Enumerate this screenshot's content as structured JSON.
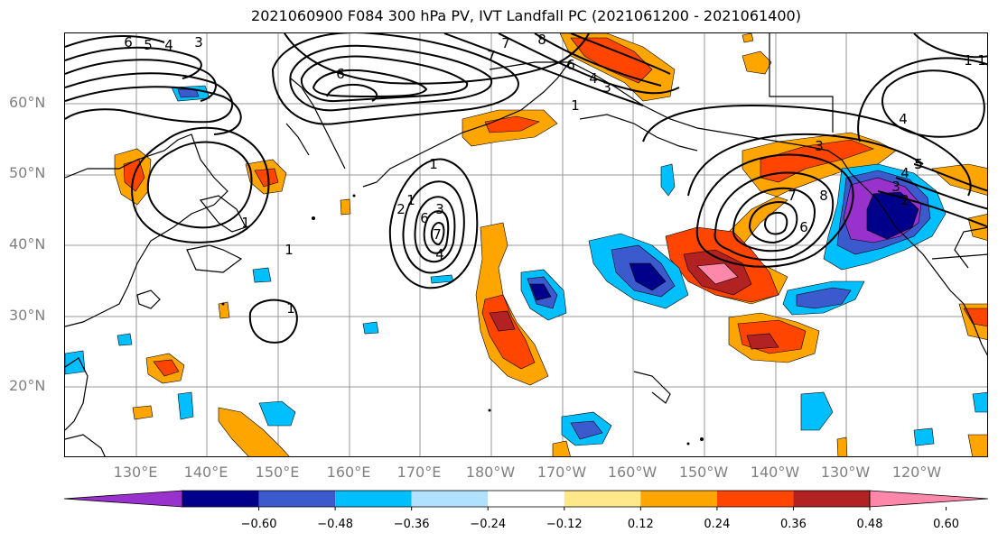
{
  "title": "2021060900 F084 300 hPa PV, IVT Landfall PC (2021061200 - 2021061400)",
  "map": {
    "lat_labels": [
      "60°N",
      "50°N",
      "40°N",
      "30°N",
      "20°N"
    ],
    "lon_labels": [
      "130°E",
      "140°E",
      "150°E",
      "160°E",
      "170°E",
      "180°W",
      "170°W",
      "160°W",
      "150°W",
      "140°W",
      "130°W",
      "120°W"
    ],
    "contour_labels": [
      "6",
      "5",
      "4",
      "3",
      "7",
      "8",
      "6",
      "7",
      "6",
      "4",
      "3",
      "1",
      "1",
      "1",
      "1",
      "1",
      "2",
      "1",
      "6",
      "3",
      "4",
      "7",
      "1",
      "3",
      "7",
      "8",
      "6",
      "5",
      "4",
      "3",
      "2",
      "5",
      "1",
      "4"
    ]
  },
  "colorbar": {
    "tick_labels": [
      "−0.60",
      "−0.48",
      "−0.36",
      "−0.24",
      "−0.12",
      "0.12",
      "0.24",
      "0.36",
      "0.48",
      "0.60"
    ],
    "colors": [
      "#9932cc",
      "#00008b",
      "#3a5acd",
      "#00bfff",
      "#b0e2ff",
      "#ffffff",
      "#ffe88a",
      "#ffa500",
      "#ff4500",
      "#b22222",
      "#ff88aa"
    ]
  }
}
